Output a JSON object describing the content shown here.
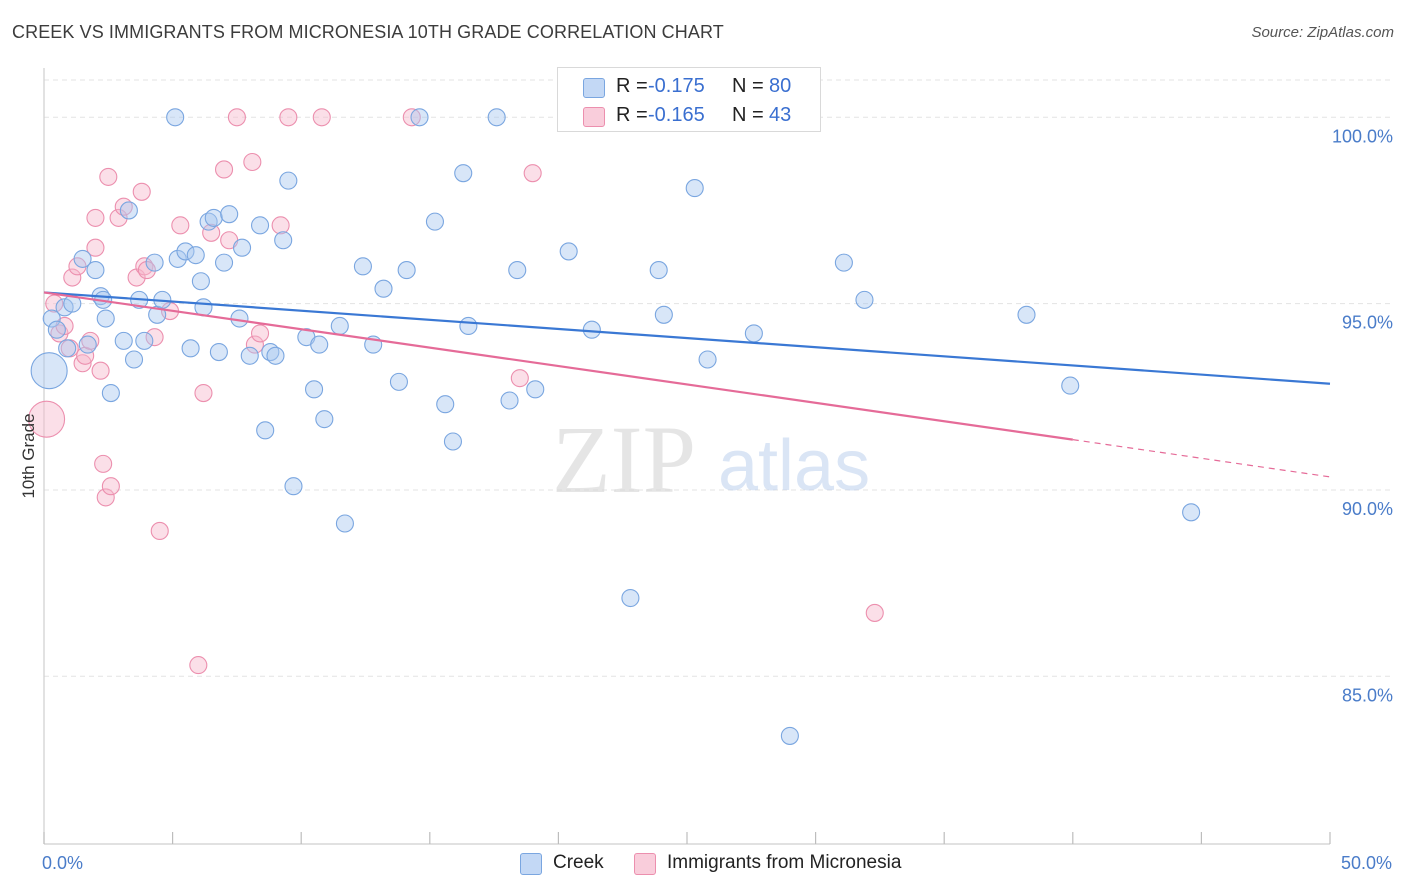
{
  "header": {
    "title": "CREEK VS IMMIGRANTS FROM MICRONESIA 10TH GRADE CORRELATION CHART",
    "source": "Source: ZipAtlas.com"
  },
  "watermark": {
    "zip": "ZIP",
    "atlas": "atlas"
  },
  "legend": {
    "rows": [
      {
        "r_label": "R =",
        "r_value": "-0.175",
        "n_label": "N =",
        "n_value": "80"
      },
      {
        "r_label": "R =",
        "r_value": "-0.165",
        "n_label": "N =",
        "n_value": "43"
      }
    ]
  },
  "bottom_legend": {
    "series1": "Creek",
    "series2": "Immigrants from Micronesia"
  },
  "colors": {
    "creek_fill": "#a9c8f0",
    "creek_stroke": "#7aa6e0",
    "creek_line": "#3a78d4",
    "micro_fill": "#f6b8cc",
    "micro_stroke": "#ec8fae",
    "micro_line": "#e56b98",
    "tick_text": "#4a7cc9",
    "grid": "#e3e3e3"
  },
  "chart_data": {
    "type": "scatter",
    "title": "CREEK VS IMMIGRANTS FROM MICRONESIA 10TH GRADE CORRELATION CHART",
    "xlabel": "",
    "ylabel": "10th Grade",
    "xlim": [
      0,
      50
    ],
    "ylim": [
      80.5,
      101
    ],
    "x_tick_labels": [
      "0.0%",
      "50.0%"
    ],
    "y_ticks": [
      85,
      90,
      95,
      100
    ],
    "y_tick_labels": [
      "85.0%",
      "90.0%",
      "95.0%",
      "100.0%"
    ],
    "grid": "horizontal dashed",
    "series": [
      {
        "name": "Creek",
        "r": -0.175,
        "n": 80,
        "trend": {
          "x": [
            0,
            50
          ],
          "y": [
            95.3,
            92.85
          ]
        },
        "points": [
          [
            0.2,
            93.2
          ],
          [
            0.3,
            94.6
          ],
          [
            0.5,
            94.3
          ],
          [
            0.8,
            94.9
          ],
          [
            0.9,
            93.8
          ],
          [
            1.1,
            95.0
          ],
          [
            1.5,
            96.2
          ],
          [
            1.7,
            93.9
          ],
          [
            2.0,
            95.9
          ],
          [
            2.2,
            95.2
          ],
          [
            2.3,
            95.1
          ],
          [
            2.4,
            94.6
          ],
          [
            2.6,
            92.6
          ],
          [
            3.1,
            94.0
          ],
          [
            3.3,
            97.5
          ],
          [
            3.5,
            93.5
          ],
          [
            3.7,
            95.1
          ],
          [
            3.9,
            94.0
          ],
          [
            4.3,
            96.1
          ],
          [
            4.4,
            94.7
          ],
          [
            4.6,
            95.1
          ],
          [
            5.1,
            100.0
          ],
          [
            5.2,
            96.2
          ],
          [
            5.5,
            96.4
          ],
          [
            5.7,
            93.8
          ],
          [
            5.9,
            96.3
          ],
          [
            6.1,
            95.6
          ],
          [
            6.2,
            94.9
          ],
          [
            6.4,
            97.2
          ],
          [
            6.6,
            97.3
          ],
          [
            6.8,
            93.7
          ],
          [
            7.0,
            96.1
          ],
          [
            7.2,
            97.4
          ],
          [
            7.6,
            94.6
          ],
          [
            7.7,
            96.5
          ],
          [
            8.0,
            93.6
          ],
          [
            8.4,
            97.1
          ],
          [
            8.6,
            91.6
          ],
          [
            8.8,
            93.7
          ],
          [
            9.0,
            93.6
          ],
          [
            9.3,
            96.7
          ],
          [
            9.5,
            98.3
          ],
          [
            9.7,
            90.1
          ],
          [
            10.2,
            94.1
          ],
          [
            10.5,
            92.7
          ],
          [
            10.7,
            93.9
          ],
          [
            10.9,
            91.9
          ],
          [
            11.5,
            94.4
          ],
          [
            11.7,
            89.1
          ],
          [
            12.4,
            96.0
          ],
          [
            12.8,
            93.9
          ],
          [
            13.2,
            95.4
          ],
          [
            13.8,
            92.9
          ],
          [
            14.1,
            95.9
          ],
          [
            14.6,
            100.0
          ],
          [
            15.2,
            97.2
          ],
          [
            15.6,
            92.3
          ],
          [
            15.9,
            91.3
          ],
          [
            16.3,
            98.5
          ],
          [
            16.5,
            94.4
          ],
          [
            17.6,
            100.0
          ],
          [
            18.1,
            92.4
          ],
          [
            18.4,
            95.9
          ],
          [
            19.1,
            92.7
          ],
          [
            20.4,
            96.4
          ],
          [
            21.3,
            94.3
          ],
          [
            22.8,
            87.1
          ],
          [
            23.2,
            100.0
          ],
          [
            23.7,
            100.0
          ],
          [
            23.9,
            95.9
          ],
          [
            24.1,
            94.7
          ],
          [
            25.3,
            98.1
          ],
          [
            25.8,
            93.5
          ],
          [
            27.6,
            94.2
          ],
          [
            29.0,
            83.4
          ],
          [
            31.1,
            96.1
          ],
          [
            31.9,
            95.1
          ],
          [
            38.2,
            94.7
          ],
          [
            39.9,
            92.8
          ],
          [
            44.6,
            89.4
          ]
        ]
      },
      {
        "name": "Immigrants from Micronesia",
        "r": -0.165,
        "n": 43,
        "trend": {
          "x": [
            0,
            40
          ],
          "y": [
            95.3,
            91.35
          ]
        },
        "trend_dashed": {
          "x": [
            40,
            50
          ],
          "y": [
            91.35,
            90.35
          ]
        },
        "points": [
          [
            0.1,
            91.9
          ],
          [
            0.4,
            95.0
          ],
          [
            0.6,
            94.2
          ],
          [
            0.8,
            94.4
          ],
          [
            1.0,
            93.8
          ],
          [
            1.1,
            95.7
          ],
          [
            1.3,
            96.0
          ],
          [
            1.5,
            93.4
          ],
          [
            1.6,
            93.6
          ],
          [
            1.8,
            94.0
          ],
          [
            2.0,
            96.5
          ],
          [
            2.0,
            97.3
          ],
          [
            2.2,
            93.2
          ],
          [
            2.3,
            90.7
          ],
          [
            2.4,
            89.8
          ],
          [
            2.5,
            98.4
          ],
          [
            2.6,
            90.1
          ],
          [
            2.9,
            97.3
          ],
          [
            3.1,
            97.6
          ],
          [
            3.6,
            95.7
          ],
          [
            3.8,
            98.0
          ],
          [
            3.9,
            96.0
          ],
          [
            4.0,
            95.9
          ],
          [
            4.3,
            94.1
          ],
          [
            4.5,
            88.9
          ],
          [
            4.9,
            94.8
          ],
          [
            5.3,
            97.1
          ],
          [
            6.0,
            85.3
          ],
          [
            6.2,
            92.6
          ],
          [
            6.5,
            96.9
          ],
          [
            7.0,
            98.6
          ],
          [
            7.2,
            96.7
          ],
          [
            7.5,
            100.0
          ],
          [
            8.1,
            98.8
          ],
          [
            8.2,
            93.9
          ],
          [
            8.4,
            94.2
          ],
          [
            9.2,
            97.1
          ],
          [
            9.5,
            100.0
          ],
          [
            10.8,
            100.0
          ],
          [
            14.3,
            100.0
          ],
          [
            18.5,
            93.0
          ],
          [
            19.0,
            98.5
          ],
          [
            32.3,
            86.7
          ]
        ]
      }
    ]
  }
}
